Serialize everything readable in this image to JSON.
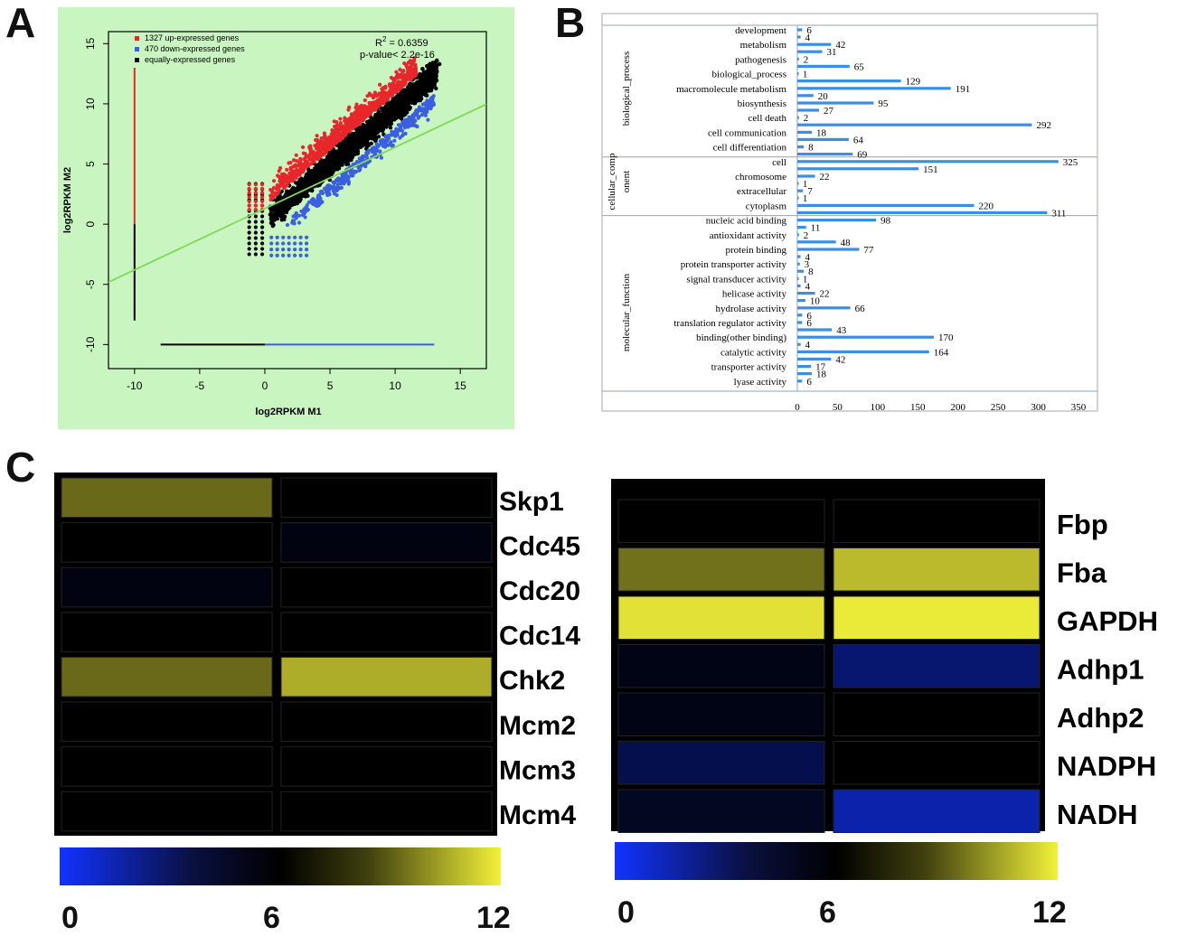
{
  "panels": {
    "a": "A",
    "b": "B",
    "c": "C"
  },
  "chart_data": [
    {
      "type": "scatter",
      "panel": "A",
      "xlabel": "log2RPKM  M1",
      "ylabel": "log2RPKM  M2",
      "xlim": [
        -12,
        17
      ],
      "ylim": [
        -12,
        16
      ],
      "xticks": [
        "-10",
        "-5",
        "0",
        "5",
        "10",
        "15"
      ],
      "yticks": [
        "-10",
        "-5",
        "0",
        "5",
        "10",
        "15"
      ],
      "legend": [
        {
          "label": "1327 up-expressed genes",
          "color": "#e8272b"
        },
        {
          "label": "470 down-expressed genes",
          "color": "#3b5fe0"
        },
        {
          "label": "equally-expressed genes",
          "color": "#000000"
        }
      ],
      "r2_label": "R",
      "r2_sup": "2",
      "r2_value": " = 0.6359",
      "pvalue": "p-value< 2.2e-16",
      "regression": {
        "slope": 0.51,
        "intercept": 1.3,
        "color": "#7ed957"
      },
      "background": "#c9f5c0"
    },
    {
      "type": "bar",
      "panel": "B",
      "orientation": "horizontal",
      "xticks": [
        "0",
        "50",
        "100",
        "150",
        "200",
        "250",
        "300",
        "350"
      ],
      "xlim": [
        0,
        350
      ],
      "bar_color": "#3a8ee6",
      "groups": [
        "biological_process",
        "cellular_comp onent",
        "molecular_function"
      ],
      "group_labels": {
        "bp": "biological_process",
        "cc1": "cellular_comp",
        "cc2": "onent",
        "mf": "molecular_function"
      },
      "rows": [
        {
          "label": "development",
          "group": "biological_process",
          "values": [
            6,
            4
          ]
        },
        {
          "label": "metabolism",
          "group": "biological_process",
          "values": [
            42,
            31
          ]
        },
        {
          "label": "pathogenesis",
          "group": "biological_process",
          "values": [
            2,
            65
          ]
        },
        {
          "label": "biological_process",
          "group": "biological_process",
          "values": [
            1,
            129
          ]
        },
        {
          "label": "macromolecule metabolism",
          "group": "biological_process",
          "values": [
            191,
            20
          ]
        },
        {
          "label": "biosynthesis",
          "group": "biological_process",
          "values": [
            95,
            27
          ]
        },
        {
          "label": "cell death",
          "group": "biological_process",
          "values": [
            2,
            292
          ]
        },
        {
          "label": "cell communication",
          "group": "biological_process",
          "values": [
            18,
            64
          ]
        },
        {
          "label": "cell differentiation",
          "group": "biological_process",
          "values": [
            8,
            69
          ]
        },
        {
          "label": "cell",
          "group": "cellular_component",
          "values": [
            325,
            151
          ]
        },
        {
          "label": "chromosome",
          "group": "cellular_component",
          "values": [
            22,
            1
          ]
        },
        {
          "label": "extracellular",
          "group": "cellular_component",
          "values": [
            7,
            1
          ]
        },
        {
          "label": "cytoplasm",
          "group": "cellular_component",
          "values": [
            220,
            311
          ]
        },
        {
          "label": "nucleic acid binding",
          "group": "molecular_function",
          "values": [
            98,
            11
          ]
        },
        {
          "label": "antioxidant activity",
          "group": "molecular_function",
          "values": [
            2,
            48
          ]
        },
        {
          "label": "protein binding",
          "group": "molecular_function",
          "values": [
            77,
            4
          ]
        },
        {
          "label": "protein transporter activity",
          "group": "molecular_function",
          "values": [
            3,
            8
          ]
        },
        {
          "label": "signal transducer activity",
          "group": "molecular_function",
          "values": [
            1,
            4
          ]
        },
        {
          "label": "helicase activity",
          "group": "molecular_function",
          "values": [
            22,
            10
          ]
        },
        {
          "label": "hydrolase activity",
          "group": "molecular_function",
          "values": [
            66,
            6
          ]
        },
        {
          "label": "translation regulator activity",
          "group": "molecular_function",
          "values": [
            6,
            43
          ]
        },
        {
          "label": "binding(other binding)",
          "group": "molecular_function",
          "values": [
            170,
            4
          ]
        },
        {
          "label": "catalytic activity",
          "group": "molecular_function",
          "values": [
            164,
            42
          ]
        },
        {
          "label": "transporter activity",
          "group": "molecular_function",
          "values": [
            17,
            18
          ]
        },
        {
          "label": "lyase activity",
          "group": "molecular_function",
          "values": [
            6
          ]
        }
      ]
    },
    {
      "type": "heatmap",
      "panel": "C-left",
      "columns": 2,
      "rows": [
        {
          "label": "Skp1",
          "values": [
            8.6,
            6.0
          ]
        },
        {
          "label": "Cdc45",
          "values": [
            6.0,
            5.6
          ]
        },
        {
          "label": "Cdc20",
          "values": [
            5.6,
            6.0
          ]
        },
        {
          "label": "Cdc14",
          "values": [
            6.0,
            6.0
          ]
        },
        {
          "label": "Chk2",
          "values": [
            8.6,
            10.3
          ]
        },
        {
          "label": "Mcm2",
          "values": [
            6.0,
            6.0
          ]
        },
        {
          "label": "Mcm3",
          "values": [
            6.0,
            6.0
          ]
        },
        {
          "label": "Mcm4",
          "values": [
            6.0,
            6.0
          ]
        }
      ],
      "colorbar": {
        "ticks": [
          "0",
          "6",
          "12"
        ],
        "range": [
          0,
          12
        ],
        "colors": [
          "#1133ff",
          "#000000",
          "#f2f23a"
        ]
      }
    },
    {
      "type": "heatmap",
      "panel": "C-right",
      "columns": 2,
      "rows": [
        {
          "label": "Fbp",
          "values": [
            6.0,
            6.0
          ]
        },
        {
          "label": "Fba",
          "values": [
            8.8,
            10.6
          ]
        },
        {
          "label": "GAPDH",
          "values": [
            11.6,
            11.8
          ]
        },
        {
          "label": "Adhp1",
          "values": [
            5.5,
            3.4
          ]
        },
        {
          "label": "Adhp2",
          "values": [
            5.5,
            6.0
          ]
        },
        {
          "label": "NADPH",
          "values": [
            4.2,
            6.0
          ]
        },
        {
          "label": "NADH",
          "values": [
            5.2,
            2.0
          ]
        }
      ],
      "colorbar": {
        "ticks": [
          "0",
          "6",
          "12"
        ],
        "range": [
          0,
          12
        ],
        "colors": [
          "#1133ff",
          "#000000",
          "#f2f23a"
        ]
      }
    }
  ]
}
